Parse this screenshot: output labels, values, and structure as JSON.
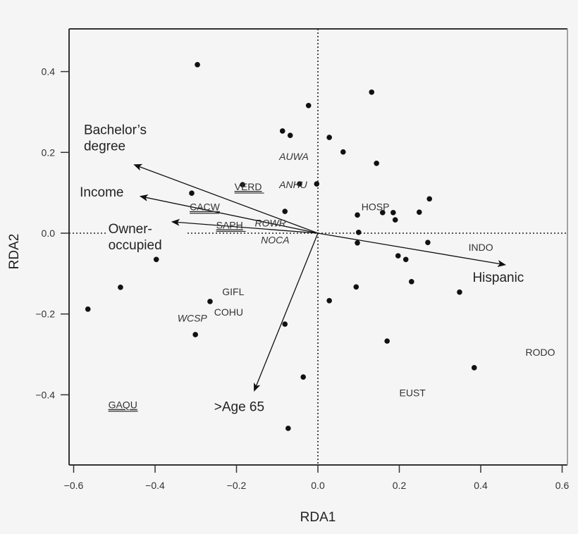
{
  "chart_data": {
    "type": "scatter",
    "subtype": "RDA biplot",
    "title": "",
    "xlabel": "RDA1",
    "ylabel": "RDA2",
    "xlim": [
      -0.62,
      0.61
    ],
    "ylim": [
      -0.57,
      0.51
    ],
    "xticks": [
      -0.6,
      -0.4,
      -0.2,
      0.0,
      0.2,
      0.4,
      0.6
    ],
    "xtick_labels": [
      "−0.6",
      "−0.4",
      "−0.2",
      "0.0",
      "0.2",
      "0.4",
      "0.6"
    ],
    "yticks": [
      -0.4,
      -0.2,
      0.0,
      0.2,
      0.4
    ],
    "ytick_labels": [
      "−0.4",
      "−0.2",
      "0.0",
      "0.2",
      "0.4"
    ],
    "grid": false,
    "reference_lines": {
      "x": 0.0,
      "y": 0.0,
      "style": "dotted"
    },
    "points": [
      {
        "x": -0.296,
        "y": 0.417
      },
      {
        "x": -0.023,
        "y": 0.316
      },
      {
        "x": 0.132,
        "y": 0.349
      },
      {
        "x": -0.087,
        "y": 0.253
      },
      {
        "x": -0.068,
        "y": 0.242
      },
      {
        "x": 0.028,
        "y": 0.237
      },
      {
        "x": 0.062,
        "y": 0.201
      },
      {
        "x": 0.144,
        "y": 0.173
      },
      {
        "x": -0.045,
        "y": 0.122
      },
      {
        "x": -0.003,
        "y": 0.122
      },
      {
        "x": -0.185,
        "y": 0.12
      },
      {
        "x": -0.31,
        "y": 0.099
      },
      {
        "x": 0.274,
        "y": 0.085
      },
      {
        "x": -0.081,
        "y": 0.054
      },
      {
        "x": 0.097,
        "y": 0.045
      },
      {
        "x": 0.159,
        "y": 0.051
      },
      {
        "x": 0.185,
        "y": 0.051
      },
      {
        "x": 0.19,
        "y": 0.033
      },
      {
        "x": 0.249,
        "y": 0.052
      },
      {
        "x": 0.1,
        "y": 0.002
      },
      {
        "x": 0.097,
        "y": -0.024
      },
      {
        "x": 0.27,
        "y": -0.023
      },
      {
        "x": 0.197,
        "y": -0.056
      },
      {
        "x": 0.216,
        "y": -0.065
      },
      {
        "x": 0.23,
        "y": -0.12
      },
      {
        "x": 0.094,
        "y": -0.133
      },
      {
        "x": 0.348,
        "y": -0.146
      },
      {
        "x": -0.397,
        "y": -0.065
      },
      {
        "x": -0.485,
        "y": -0.134
      },
      {
        "x": -0.565,
        "y": -0.188
      },
      {
        "x": -0.265,
        "y": -0.169
      },
      {
        "x": 0.028,
        "y": -0.167
      },
      {
        "x": -0.301,
        "y": -0.251
      },
      {
        "x": -0.081,
        "y": -0.225
      },
      {
        "x": 0.17,
        "y": -0.267
      },
      {
        "x": 0.384,
        "y": -0.333
      },
      {
        "x": -0.036,
        "y": -0.356
      },
      {
        "x": -0.073,
        "y": -0.483
      }
    ],
    "arrows": [
      {
        "name": "Bachelor's degree",
        "lines": [
          "Bachelor’s",
          "degree"
        ],
        "x": -0.45,
        "y": 0.169,
        "label_x": -0.575,
        "label_y": 0.245
      },
      {
        "name": "Income",
        "lines": [
          "Income"
        ],
        "x": -0.435,
        "y": 0.091,
        "label_x": -0.585,
        "label_y": 0.091
      },
      {
        "name": "Owner-occupied",
        "lines": [
          "Owner-",
          "occupied"
        ],
        "x": -0.357,
        "y": 0.028,
        "label_x": -0.515,
        "label_y": 0.0
      },
      {
        "name": "Hispanic",
        "lines": [
          "Hispanic"
        ],
        "x": 0.459,
        "y": -0.078,
        "label_x": 0.38,
        "label_y": -0.12
      },
      {
        "name": ">Age 65",
        "lines": [
          ">Age 65"
        ],
        "x": -0.156,
        "y": -0.389,
        "label_x": -0.255,
        "label_y": -0.44
      }
    ],
    "species_labels": [
      {
        "code": "AUWA",
        "x": -0.095,
        "y": 0.19,
        "style": "italic"
      },
      {
        "code": "ANHU",
        "x": -0.095,
        "y": 0.12,
        "style": "italic"
      },
      {
        "code": "VERD",
        "x": -0.205,
        "y": 0.115,
        "style": "underline"
      },
      {
        "code": "CACW",
        "x": -0.315,
        "y": 0.065,
        "style": "underline"
      },
      {
        "code": "SAPH",
        "x": -0.25,
        "y": 0.02,
        "style": "underline"
      },
      {
        "code": "ROWR",
        "x": -0.155,
        "y": 0.025,
        "style": "italic"
      },
      {
        "code": "NOCA",
        "x": -0.14,
        "y": -0.017,
        "style": "italic"
      },
      {
        "code": "HOSP",
        "x": 0.107,
        "y": 0.065,
        "style": "plain"
      },
      {
        "code": "INDO",
        "x": 0.37,
        "y": -0.035,
        "style": "plain"
      },
      {
        "code": "GIFL",
        "x": -0.235,
        "y": -0.145,
        "style": "plain"
      },
      {
        "code": "COHU",
        "x": -0.255,
        "y": -0.195,
        "style": "plain"
      },
      {
        "code": "WCSP",
        "x": -0.345,
        "y": -0.21,
        "style": "italic"
      },
      {
        "code": "RODO",
        "x": 0.51,
        "y": -0.295,
        "style": "plain"
      },
      {
        "code": "EUST",
        "x": 0.2,
        "y": -0.395,
        "style": "plain"
      },
      {
        "code": "GAQU",
        "x": -0.515,
        "y": -0.425,
        "style": "underline"
      }
    ]
  },
  "colors": {
    "background": "#f5f5f5",
    "ink": "#111111",
    "frame": "#333333",
    "frame_right": "#888888"
  }
}
